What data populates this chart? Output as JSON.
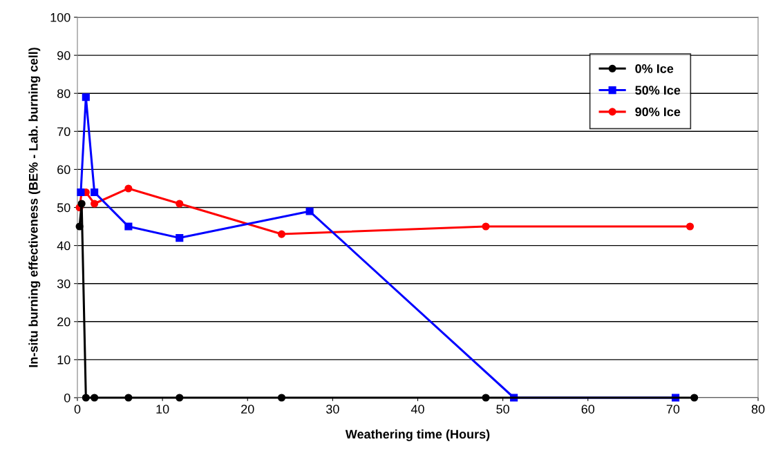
{
  "chart_data": {
    "type": "line",
    "xlabel": "Weathering time (Hours)",
    "ylabel": "In-situ burning effectiveness (BE% - Lab. burning cell)",
    "xlim": [
      0,
      80
    ],
    "xticks": [
      0,
      10,
      20,
      30,
      40,
      50,
      60,
      70,
      80
    ],
    "ylim": [
      0,
      100
    ],
    "yticks": [
      0,
      10,
      20,
      30,
      40,
      50,
      60,
      70,
      80,
      90,
      100
    ],
    "grid": "y",
    "legend": "top right",
    "series": [
      {
        "name": "0% Ice",
        "color": "#000000",
        "marker": "circle",
        "x": [
          0.25,
          0.5,
          1,
          2,
          6,
          12,
          24,
          48,
          72.5
        ],
        "values": [
          45,
          51,
          0,
          0,
          0,
          0,
          0,
          0,
          0
        ]
      },
      {
        "name": "50% Ice",
        "color": "#0000ff",
        "marker": "square",
        "x": [
          0.4,
          1,
          2,
          6,
          12,
          27.3,
          51.3,
          70.3
        ],
        "values": [
          54,
          79,
          54,
          45,
          42,
          49,
          0,
          0
        ]
      },
      {
        "name": "90% Ice",
        "color": "#ff0000",
        "marker": "circle",
        "x": [
          0.25,
          0.5,
          1,
          2,
          6,
          12,
          24,
          48,
          72
        ],
        "values": [
          50,
          54,
          54,
          51,
          55,
          51,
          43,
          45,
          45
        ]
      }
    ]
  }
}
